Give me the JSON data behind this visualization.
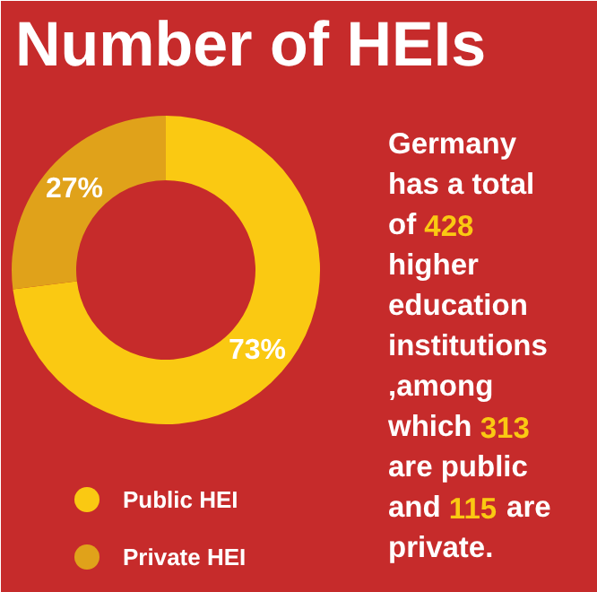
{
  "chart_data": {
    "type": "donut",
    "title": "Number of HEIs",
    "categories": [
      "Public HEI",
      "Private HEI"
    ],
    "values": [
      73,
      27
    ],
    "colors": [
      "#fac912",
      "#e0a21a"
    ],
    "value_labels": [
      "73%",
      "27%"
    ],
    "legend": "bottom",
    "annotations": [
      "Germany has a total of 428 higher education institutions ,among which 313 are public and 115 are private."
    ]
  }
}
